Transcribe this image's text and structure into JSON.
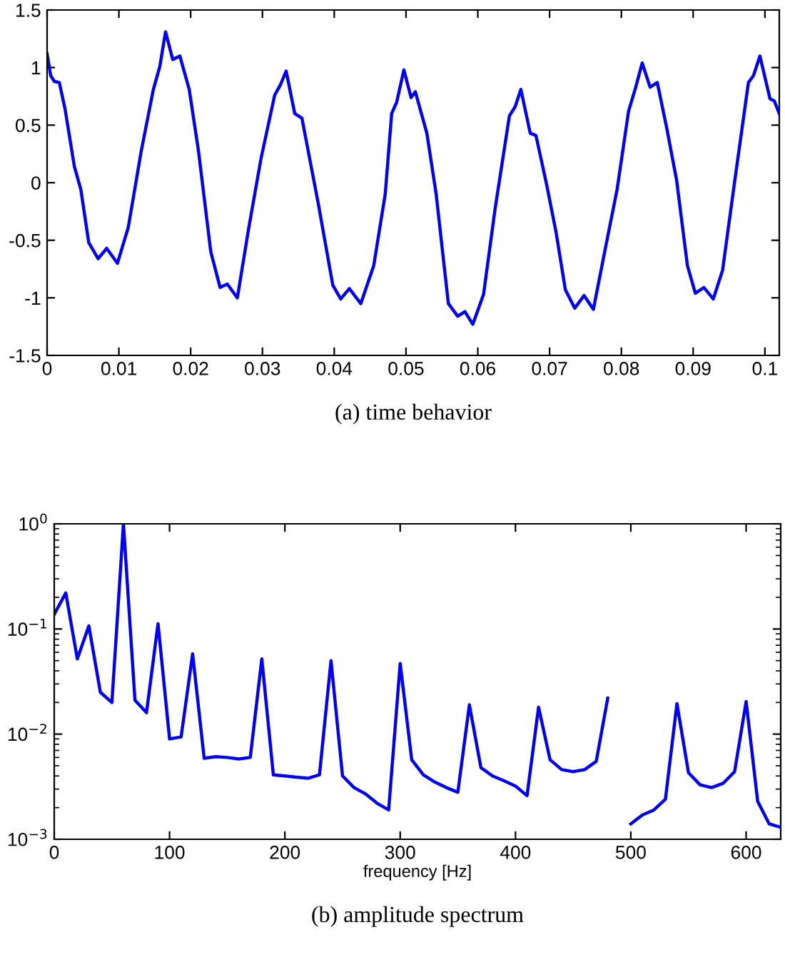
{
  "chart_data": [
    {
      "type": "line",
      "title": "(a) time behavior",
      "series": [
        {
          "color": "#0000ff",
          "x": [
            0,
            0.0005,
            0.001,
            0.0017,
            0.0025,
            0.0038,
            0.0047,
            0.0058,
            0.0071,
            0.0083,
            0.0098,
            0.0113,
            0.0131,
            0.0148,
            0.0157,
            0.0165,
            0.0175,
            0.0185,
            0.0198,
            0.0211,
            0.0228,
            0.0241,
            0.0251,
            0.0265,
            0.0281,
            0.0298,
            0.0317,
            0.0325,
            0.0333,
            0.0345,
            0.0355,
            0.0378,
            0.0398,
            0.0409,
            0.0421,
            0.0437,
            0.0455,
            0.0471,
            0.048,
            0.0487,
            0.0497,
            0.0507,
            0.0513,
            0.0529,
            0.0542,
            0.0559,
            0.0572,
            0.0582,
            0.0593,
            0.0608,
            0.0624,
            0.0644,
            0.0652,
            0.066,
            0.0673,
            0.0681,
            0.0696,
            0.0709,
            0.0722,
            0.0735,
            0.0748,
            0.0761,
            0.0778,
            0.0794,
            0.081,
            0.082,
            0.0829,
            0.084,
            0.085,
            0.0863,
            0.0877,
            0.0892,
            0.0903,
            0.0915,
            0.0928,
            0.0941,
            0.0958,
            0.0977,
            0.0984,
            0.0993,
            0.1007,
            0.1013,
            0.102
          ],
          "values": [
            1.12,
            0.93,
            0.88,
            0.87,
            0.64,
            0.14,
            -0.06,
            -0.52,
            -0.66,
            -0.57,
            -0.7,
            -0.39,
            0.27,
            0.81,
            1.01,
            1.31,
            1.07,
            1.1,
            0.81,
            0.27,
            -0.6,
            -0.91,
            -0.88,
            -1.0,
            -0.39,
            0.21,
            0.76,
            0.85,
            0.97,
            0.6,
            0.56,
            -0.19,
            -0.89,
            -1.01,
            -0.92,
            -1.05,
            -0.72,
            -0.1,
            0.6,
            0.7,
            0.98,
            0.74,
            0.79,
            0.43,
            -0.1,
            -1.05,
            -1.16,
            -1.12,
            -1.23,
            -0.97,
            -0.23,
            0.58,
            0.66,
            0.81,
            0.43,
            0.41,
            -0.02,
            -0.43,
            -0.93,
            -1.09,
            -0.98,
            -1.1,
            -0.56,
            -0.06,
            0.62,
            0.83,
            1.04,
            0.83,
            0.87,
            0.48,
            0.02,
            -0.72,
            -0.96,
            -0.91,
            -1.01,
            -0.76,
            0.02,
            0.87,
            0.93,
            1.1,
            0.73,
            0.71,
            0.6
          ]
        }
      ],
      "xlim": [
        0,
        0.102
      ],
      "xticks": [
        0,
        0.01,
        0.02,
        0.03,
        0.04,
        0.05,
        0.06,
        0.07,
        0.08,
        0.09,
        0.1
      ],
      "ylim": [
        -1.5,
        1.5
      ],
      "yticks": [
        {
          "value": -1.5,
          "label": "-1.5"
        },
        {
          "value": -1,
          "label": "-1"
        },
        {
          "value": -0.5,
          "label": "-0.5"
        },
        0,
        0.5,
        1,
        1.5
      ],
      "grid": false,
      "legend": false
    },
    {
      "type": "line",
      "title": "(b) amplitude spectrum",
      "xlabel": "frequency [Hz]",
      "log": "y",
      "x": [
        0,
        10,
        20,
        30,
        40,
        50,
        60,
        70,
        80,
        90,
        100,
        110,
        120,
        130,
        140,
        150,
        160,
        170,
        180,
        190,
        200,
        210,
        220,
        230,
        240,
        250,
        260,
        270,
        280,
        290,
        300,
        310,
        320,
        330,
        340,
        350,
        360,
        370,
        380,
        390,
        400,
        410,
        420,
        430,
        440,
        450,
        460,
        470,
        480,
        490,
        500,
        510,
        520,
        530,
        540,
        550,
        560,
        570,
        580,
        590,
        600,
        610,
        620,
        630
      ],
      "series": [
        {
          "color": "#0000ff",
          "values": [
            0.138,
            0.22,
            0.052,
            0.107,
            0.025,
            0.02,
            1.0,
            0.021,
            0.016,
            0.112,
            0.009,
            0.0094,
            0.058,
            0.0059,
            0.0061,
            0.006,
            0.0058,
            0.006,
            0.052,
            0.0041,
            0.004,
            0.0039,
            0.0038,
            0.0041,
            0.05,
            0.004,
            0.0031,
            0.0027,
            0.0022,
            0.0019,
            0.047,
            0.0057,
            0.0041,
            0.0035,
            0.0031,
            0.0028,
            0.019,
            0.0048,
            0.004,
            0.0036,
            0.0032,
            0.0026,
            0.018,
            0.0057,
            0.0046,
            0.0044,
            0.0046,
            0.0055,
            0.022,
            null,
            0.0014,
            0.0017,
            0.0019,
            0.0024,
            0.0195,
            0.0043,
            0.0033,
            0.0031,
            0.0034,
            0.0044,
            0.0204,
            0.0023,
            0.0014,
            0.0013
          ]
        }
      ],
      "xlim": [
        0,
        630
      ],
      "xticks": [
        0,
        100,
        200,
        300,
        400,
        500,
        600
      ],
      "ylim": [
        0.001,
        1
      ],
      "yticks": [
        {
          "value": 0.001,
          "label": "10$^{−3}$"
        },
        {
          "value": 0.01,
          "label": "10$^{−2}$"
        },
        {
          "value": 0.1,
          "label": "10$^{−1}$"
        },
        {
          "value": 1,
          "label": "10$^{0}$"
        }
      ],
      "grid": false,
      "legend": false
    }
  ]
}
